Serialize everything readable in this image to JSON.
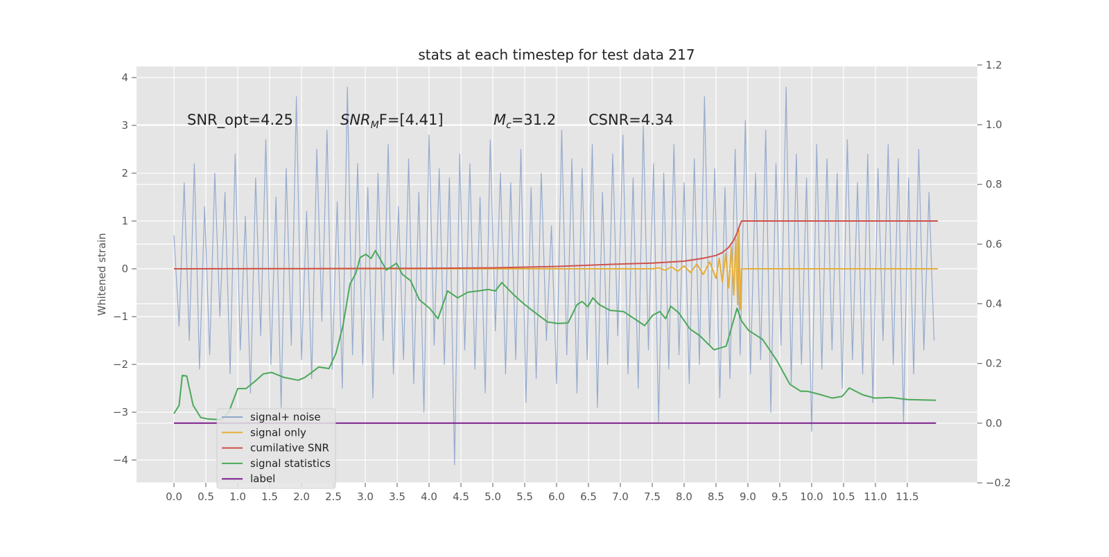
{
  "chart_data": {
    "type": "line",
    "title": "stats at each timestep for test data 217",
    "y_label": "Whitened strain",
    "grid": true,
    "background": "#e5e5e5",
    "legend_loc": "lower left",
    "xlim": [
      -0.587,
      12.598
    ],
    "ylim": [
      -4.478,
      4.232
    ],
    "y2lim": [
      -0.2,
      1.195
    ],
    "xticks": [
      {
        "value": 0,
        "label": "0.0"
      },
      0.5,
      {
        "value": 1,
        "label": "1.0"
      },
      1.5,
      {
        "value": 2,
        "label": "2.0"
      },
      2.5,
      {
        "value": 3,
        "label": "3.0"
      },
      3.5,
      {
        "value": 4,
        "label": "4.0"
      },
      4.5,
      {
        "value": 5,
        "label": "5.0"
      },
      5.5,
      {
        "value": 6,
        "label": "6.0"
      },
      6.5,
      {
        "value": 7,
        "label": "7.0"
      },
      7.5,
      {
        "value": 8,
        "label": "8.0"
      },
      8.5,
      {
        "value": 9,
        "label": "9.0"
      },
      9.5,
      {
        "value": 10,
        "label": "10.0"
      },
      10.5,
      {
        "value": 11,
        "label": "11.0"
      },
      11.5
    ],
    "yticks": [
      {
        "value": -4,
        "label": "−4"
      },
      {
        "value": -3,
        "label": "−3"
      },
      {
        "value": -2,
        "label": "−2"
      },
      {
        "value": -1,
        "label": "−1"
      },
      0,
      1,
      2,
      3,
      4
    ],
    "y2ticks": [
      {
        "value": -0.2,
        "label": "−0.2"
      },
      {
        "value": 0,
        "label": "0.0"
      },
      0.2,
      0.4,
      0.6,
      0.8,
      {
        "value": 1,
        "label": "1.0"
      },
      1.2
    ],
    "annotations": [
      {
        "base": "SNR_opt=4.25"
      },
      {
        "base": "SNR",
        "sub": "M",
        "after": "F=[4.41]"
      },
      {
        "base": "M",
        "sub": "c",
        "after": "=31.2"
      },
      {
        "base": "CSNR=4.34"
      }
    ],
    "series": [
      {
        "name": "signal+ noise",
        "color": "#8fa6cc",
        "axis": "y",
        "x": [
          0,
          0.08,
          0.16,
          0.24,
          0.32,
          0.4,
          0.48,
          0.56,
          0.64,
          0.72,
          0.8,
          0.88,
          0.96,
          1.04,
          1.12,
          1.2,
          1.28,
          1.36,
          1.44,
          1.52,
          1.6,
          1.68,
          1.76,
          1.84,
          1.92,
          2,
          2.08,
          2.16,
          2.24,
          2.32,
          2.4,
          2.48,
          2.56,
          2.64,
          2.72,
          2.8,
          2.88,
          2.96,
          3.04,
          3.12,
          3.2,
          3.28,
          3.36,
          3.44,
          3.52,
          3.6,
          3.68,
          3.76,
          3.84,
          3.92,
          4,
          4.08,
          4.16,
          4.24,
          4.32,
          4.4,
          4.48,
          4.56,
          4.64,
          4.72,
          4.8,
          4.88,
          4.96,
          5.04,
          5.12,
          5.2,
          5.28,
          5.36,
          5.44,
          5.52,
          5.6,
          5.68,
          5.76,
          5.84,
          5.92,
          6,
          6.08,
          6.16,
          6.24,
          6.32,
          6.4,
          6.48,
          6.56,
          6.64,
          6.72,
          6.8,
          6.88,
          6.96,
          7.04,
          7.12,
          7.2,
          7.28,
          7.36,
          7.44,
          7.52,
          7.6,
          7.68,
          7.76,
          7.84,
          7.92,
          8,
          8.08,
          8.16,
          8.24,
          8.32,
          8.4,
          8.48,
          8.56,
          8.64,
          8.72,
          8.8,
          8.88,
          8.96,
          9.04,
          9.12,
          9.2,
          9.28,
          9.36,
          9.44,
          9.52,
          9.6,
          9.68,
          9.76,
          9.84,
          9.92,
          10,
          10.08,
          10.16,
          10.24,
          10.32,
          10.4,
          10.48,
          10.56,
          10.64,
          10.72,
          10.8,
          10.88,
          10.96,
          11.04,
          11.12,
          11.2,
          11.28,
          11.36,
          11.44,
          11.52,
          11.6,
          11.68,
          11.76,
          11.84,
          11.92
        ],
        "values": [
          0.7,
          -1.2,
          1.8,
          -1.5,
          2.2,
          -2.1,
          1.3,
          -1.8,
          2.0,
          -1.0,
          1.6,
          -2.2,
          2.4,
          -1.7,
          1.1,
          -2.6,
          1.9,
          -1.4,
          2.7,
          -2.0,
          1.5,
          -2.9,
          2.1,
          -1.6,
          3.6,
          -1.9,
          1.2,
          -2.3,
          2.5,
          -1.1,
          2.9,
          -2.1,
          1.4,
          -2.5,
          3.8,
          -1.8,
          2.2,
          -2.0,
          1.7,
          -2.7,
          2.0,
          -1.5,
          2.6,
          -2.2,
          1.3,
          -1.9,
          2.3,
          -2.4,
          1.6,
          -3.0,
          2.8,
          -1.6,
          2.1,
          -2.0,
          1.9,
          -4.1,
          2.4,
          -1.7,
          2.2,
          -2.1,
          1.5,
          -2.6,
          2.7,
          -1.3,
          2.0,
          -2.2,
          1.8,
          -1.9,
          2.5,
          -2.8,
          1.7,
          -2.3,
          2.0,
          -1.5,
          0.9,
          -2.4,
          2.9,
          -1.8,
          2.3,
          -2.6,
          2.1,
          -1.9,
          2.6,
          -2.9,
          1.6,
          -2.0,
          2.4,
          -1.4,
          2.8,
          -2.2,
          1.9,
          -2.5,
          3.0,
          -1.7,
          2.2,
          -3.2,
          2.0,
          -2.1,
          2.6,
          -1.8,
          1.8,
          -2.4,
          2.3,
          -2.0,
          3.6,
          -1.6,
          2.1,
          -2.7,
          1.7,
          -2.3,
          2.5,
          -1.8,
          3.1,
          -2.2,
          2.0,
          -1.9,
          2.9,
          -3.0,
          2.2,
          -1.6,
          3.8,
          -2.4,
          2.4,
          -2.0,
          1.9,
          -3.4,
          2.6,
          -2.1,
          2.3,
          -1.7,
          2.0,
          -2.5,
          2.7,
          -1.9,
          1.8,
          -2.2,
          2.4,
          -2.8,
          2.1,
          -1.5,
          2.6,
          -2.0,
          2.3,
          -3.2,
          1.9,
          -2.2,
          2.5,
          -1.7,
          1.6,
          -1.5
        ]
      },
      {
        "name": "signal only",
        "color": "#e5ae38",
        "axis": "y",
        "x": [
          0,
          7.5,
          7.6,
          7.7,
          7.8,
          7.9,
          8,
          8.1,
          8.2,
          8.3,
          8.4,
          8.5,
          8.55,
          8.6,
          8.65,
          8.7,
          8.74,
          8.78,
          8.81,
          8.84,
          8.86,
          8.88,
          8.9,
          11.98
        ],
        "values": [
          0,
          0,
          0.02,
          -0.03,
          0.04,
          -0.05,
          0.06,
          -0.08,
          0.1,
          -0.12,
          0.15,
          -0.2,
          0.22,
          -0.28,
          0.32,
          -0.4,
          0.46,
          -0.55,
          0.62,
          -0.75,
          0.82,
          -0.85,
          0,
          0
        ]
      },
      {
        "name": "cumilative SNR",
        "color": "#d0504a",
        "axis": "y",
        "x": [
          0,
          2,
          4,
          5,
          6,
          7,
          7.5,
          8,
          8.3,
          8.5,
          8.6,
          8.7,
          8.78,
          8.83,
          8.87,
          8.9,
          11.98
        ],
        "values": [
          0,
          0.005,
          0.012,
          0.02,
          0.05,
          0.1,
          0.12,
          0.16,
          0.22,
          0.28,
          0.34,
          0.45,
          0.6,
          0.75,
          0.9,
          1.0,
          1.0
        ]
      },
      {
        "name": "signal statistics",
        "color": "#4aa858",
        "axis": "y2",
        "x": [
          0,
          0.08,
          0.13,
          0.2,
          0.3,
          0.42,
          0.53,
          0.75,
          0.86,
          1.0,
          1.13,
          1.29,
          1.4,
          1.53,
          1.73,
          1.95,
          2.05,
          2.16,
          2.27,
          2.43,
          2.54,
          2.65,
          2.76,
          2.85,
          2.92,
          3.01,
          3.09,
          3.16,
          3.33,
          3.49,
          3.58,
          3.71,
          3.85,
          4.01,
          4.14,
          4.29,
          4.45,
          4.61,
          4.77,
          4.93,
          5.04,
          5.14,
          5.32,
          5.48,
          5.64,
          5.86,
          6.02,
          6.18,
          6.32,
          6.4,
          6.49,
          6.57,
          6.67,
          6.84,
          7.05,
          7.22,
          7.38,
          7.51,
          7.62,
          7.71,
          7.79,
          7.92,
          8.09,
          8.25,
          8.47,
          8.66,
          8.83,
          8.9,
          9.01,
          9.23,
          9.45,
          9.66,
          9.83,
          9.93,
          10.15,
          10.32,
          10.48,
          10.59,
          10.8,
          10.99,
          11.24,
          11.51,
          11.95
        ],
        "values": [
          0.032,
          0.06,
          0.16,
          0.158,
          0.06,
          0.019,
          0.014,
          0.012,
          0.037,
          0.116,
          0.116,
          0.144,
          0.165,
          0.17,
          0.153,
          0.144,
          0.153,
          0.17,
          0.188,
          0.183,
          0.234,
          0.327,
          0.466,
          0.501,
          0.555,
          0.566,
          0.552,
          0.578,
          0.513,
          0.536,
          0.499,
          0.478,
          0.413,
          0.385,
          0.35,
          0.443,
          0.42,
          0.439,
          0.443,
          0.448,
          0.443,
          0.471,
          0.432,
          0.401,
          0.374,
          0.339,
          0.334,
          0.336,
          0.397,
          0.408,
          0.39,
          0.42,
          0.397,
          0.378,
          0.374,
          0.35,
          0.327,
          0.362,
          0.374,
          0.35,
          0.392,
          0.369,
          0.316,
          0.292,
          0.246,
          0.258,
          0.385,
          0.343,
          0.311,
          0.281,
          0.211,
          0.13,
          0.107,
          0.107,
          0.095,
          0.084,
          0.09,
          0.118,
          0.095,
          0.084,
          0.086,
          0.079,
          0.077
        ]
      },
      {
        "name": "label",
        "color": "#7b1f8c",
        "axis": "y2",
        "x": [
          0,
          11.95
        ],
        "values": [
          0,
          0
        ]
      }
    ]
  }
}
